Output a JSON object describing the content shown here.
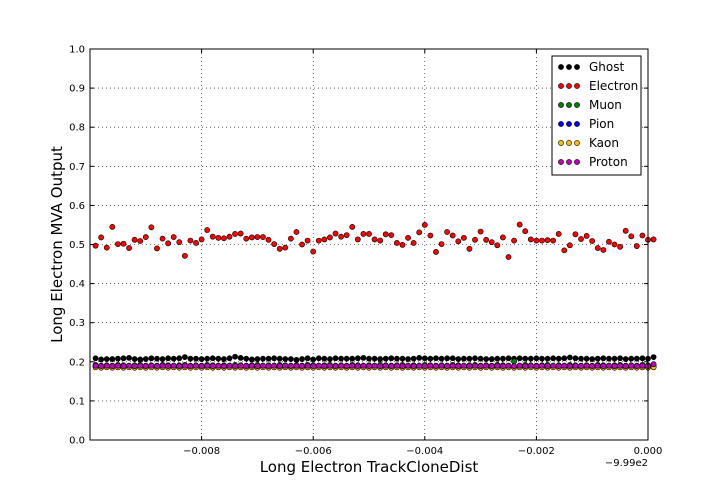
{
  "chart_data": {
    "type": "scatter",
    "xlabel": "Long Electron TrackCloneDist",
    "ylabel": "Long Electron MVA Output",
    "x_offset_label": "−9.99e2",
    "xlim": [
      -0.01,
      0.0
    ],
    "ylim": [
      0.0,
      1.0
    ],
    "x_ticks": [
      -0.008,
      -0.006,
      -0.004,
      -0.002,
      0.0
    ],
    "x_tick_labels": [
      "−0.008",
      "−0.006",
      "−0.004",
      "−0.002",
      "0.000"
    ],
    "y_ticks": [
      0.0,
      0.1,
      0.2,
      0.3,
      0.4,
      0.5,
      0.6,
      0.7,
      0.8,
      0.9,
      1.0
    ],
    "y_tick_labels": [
      "0.0",
      "0.1",
      "0.2",
      "0.3",
      "0.4",
      "0.5",
      "0.6",
      "0.7",
      "0.8",
      "0.9",
      "1.0"
    ],
    "grid": true,
    "legend_position": "top-right",
    "x_start": -0.0099,
    "x_step": 0.0001,
    "series": [
      {
        "name": "Ghost",
        "color": "#000000",
        "values": [
          0.209,
          0.206,
          0.207,
          0.207,
          0.208,
          0.209,
          0.21,
          0.207,
          0.206,
          0.207,
          0.209,
          0.208,
          0.207,
          0.209,
          0.208,
          0.209,
          0.212,
          0.208,
          0.208,
          0.207,
          0.208,
          0.209,
          0.208,
          0.207,
          0.209,
          0.213,
          0.21,
          0.208,
          0.206,
          0.207,
          0.208,
          0.208,
          0.209,
          0.208,
          0.207,
          0.207,
          0.205,
          0.207,
          0.209,
          0.206,
          0.209,
          0.208,
          0.207,
          0.209,
          0.208,
          0.208,
          0.208,
          0.209,
          0.21,
          0.208,
          0.208,
          0.207,
          0.208,
          0.209,
          0.208,
          0.208,
          0.207,
          0.208,
          0.21,
          0.209,
          0.208,
          0.209,
          0.208,
          0.209,
          0.209,
          0.207,
          0.208,
          0.208,
          0.209,
          0.208,
          0.207,
          0.207,
          0.208,
          0.208,
          0.209,
          0.208,
          0.209,
          0.208,
          0.208,
          0.209,
          0.208,
          0.208,
          0.209,
          0.208,
          0.209,
          0.211,
          0.209,
          0.208,
          0.208,
          0.207,
          0.208,
          0.209,
          0.208,
          0.208,
          0.209,
          0.207,
          0.208,
          0.208,
          0.209,
          0.208,
          0.212
        ]
      },
      {
        "name": "Electron",
        "color": "#ff0000",
        "values": [
          0.497,
          0.518,
          0.492,
          0.545,
          0.501,
          0.502,
          0.491,
          0.512,
          0.509,
          0.519,
          0.544,
          0.49,
          0.515,
          0.503,
          0.519,
          0.506,
          0.471,
          0.51,
          0.504,
          0.513,
          0.537,
          0.52,
          0.517,
          0.516,
          0.52,
          0.527,
          0.528,
          0.515,
          0.518,
          0.519,
          0.519,
          0.512,
          0.501,
          0.489,
          0.492,
          0.515,
          0.532,
          0.5,
          0.51,
          0.482,
          0.51,
          0.513,
          0.518,
          0.528,
          0.52,
          0.524,
          0.545,
          0.513,
          0.527,
          0.527,
          0.513,
          0.51,
          0.526,
          0.524,
          0.504,
          0.499,
          0.517,
          0.504,
          0.531,
          0.55,
          0.523,
          0.481,
          0.501,
          0.532,
          0.523,
          0.508,
          0.517,
          0.489,
          0.512,
          0.533,
          0.512,
          0.506,
          0.498,
          0.518,
          0.468,
          0.51,
          0.551,
          0.534,
          0.513,
          0.51,
          0.51,
          0.511,
          0.51,
          0.527,
          0.485,
          0.498,
          0.526,
          0.514,
          0.522,
          0.509,
          0.491,
          0.486,
          0.507,
          0.5,
          0.494,
          0.535,
          0.521,
          0.496,
          0.523,
          0.512,
          0.513
        ]
      },
      {
        "name": "Muon",
        "color": "#007f00",
        "values": [
          0.192,
          0.19,
          0.191,
          0.19,
          0.192,
          0.191,
          0.19,
          0.191,
          0.192,
          0.19,
          0.191,
          0.19,
          0.192,
          0.191,
          0.19,
          0.191,
          0.192,
          0.19,
          0.191,
          0.19,
          0.192,
          0.191,
          0.19,
          0.191,
          0.19,
          0.192,
          0.191,
          0.19,
          0.191,
          0.192,
          0.19,
          0.191,
          0.19,
          0.192,
          0.191,
          0.19,
          0.191,
          0.19,
          0.192,
          0.191,
          0.19,
          0.191,
          0.192,
          0.19,
          0.191,
          0.19,
          0.192,
          0.191,
          0.19,
          0.191,
          0.19,
          0.192,
          0.191,
          0.19,
          0.191,
          0.192,
          0.19,
          0.191,
          0.19,
          0.192,
          0.191,
          0.19,
          0.191,
          0.19,
          0.192,
          0.191,
          0.19,
          0.191,
          0.192,
          0.19,
          0.191,
          0.19,
          0.192,
          0.191,
          0.19,
          0.201,
          0.19,
          0.192,
          0.191,
          0.19,
          0.191,
          0.192,
          0.19,
          0.191,
          0.19,
          0.192,
          0.191,
          0.19,
          0.191,
          0.19,
          0.192,
          0.191,
          0.19,
          0.191,
          0.192,
          0.19,
          0.191,
          0.19,
          0.192,
          0.191,
          0.19
        ]
      },
      {
        "name": "Pion",
        "color": "#0000ff",
        "values": [
          0.188,
          0.187,
          0.188,
          0.189,
          0.187,
          0.188,
          0.187,
          0.188,
          0.189,
          0.187,
          0.188,
          0.187,
          0.188,
          0.189,
          0.187,
          0.188,
          0.187,
          0.188,
          0.189,
          0.187,
          0.188,
          0.187,
          0.188,
          0.189,
          0.187,
          0.188,
          0.187,
          0.188,
          0.189,
          0.187,
          0.188,
          0.187,
          0.188,
          0.189,
          0.187,
          0.188,
          0.187,
          0.188,
          0.189,
          0.187,
          0.188,
          0.187,
          0.188,
          0.189,
          0.187,
          0.188,
          0.187,
          0.188,
          0.189,
          0.187,
          0.188,
          0.187,
          0.188,
          0.189,
          0.187,
          0.188,
          0.187,
          0.188,
          0.189,
          0.187,
          0.188,
          0.187,
          0.188,
          0.189,
          0.187,
          0.188,
          0.187,
          0.188,
          0.189,
          0.187,
          0.188,
          0.187,
          0.188,
          0.189,
          0.187,
          0.188,
          0.187,
          0.188,
          0.189,
          0.187,
          0.188,
          0.187,
          0.188,
          0.189,
          0.187,
          0.188,
          0.187,
          0.188,
          0.189,
          0.187,
          0.188,
          0.187,
          0.188,
          0.189,
          0.187,
          0.188,
          0.187,
          0.188,
          0.189,
          0.187,
          0.188
        ]
      },
      {
        "name": "Kaon",
        "color": "#ffbf00",
        "values": [
          0.186,
          0.185,
          0.186,
          0.185,
          0.186,
          0.185,
          0.186,
          0.185,
          0.186,
          0.185,
          0.186,
          0.185,
          0.186,
          0.185,
          0.186,
          0.185,
          0.186,
          0.185,
          0.186,
          0.185,
          0.186,
          0.185,
          0.186,
          0.185,
          0.186,
          0.185,
          0.186,
          0.185,
          0.186,
          0.185,
          0.186,
          0.185,
          0.186,
          0.185,
          0.186,
          0.185,
          0.186,
          0.185,
          0.186,
          0.185,
          0.186,
          0.185,
          0.186,
          0.185,
          0.186,
          0.185,
          0.186,
          0.185,
          0.186,
          0.185,
          0.186,
          0.185,
          0.186,
          0.185,
          0.186,
          0.185,
          0.186,
          0.185,
          0.186,
          0.185,
          0.186,
          0.185,
          0.186,
          0.185,
          0.186,
          0.185,
          0.186,
          0.185,
          0.186,
          0.185,
          0.186,
          0.185,
          0.186,
          0.185,
          0.186,
          0.185,
          0.186,
          0.185,
          0.186,
          0.185,
          0.186,
          0.185,
          0.186,
          0.185,
          0.186,
          0.185,
          0.186,
          0.185,
          0.186,
          0.185,
          0.186,
          0.185,
          0.186,
          0.185,
          0.186,
          0.185,
          0.186,
          0.185,
          0.186,
          0.185,
          0.186
        ]
      },
      {
        "name": "Proton",
        "color": "#bf00bf",
        "values": [
          0.19,
          0.189,
          0.19,
          0.189,
          0.19,
          0.189,
          0.19,
          0.189,
          0.19,
          0.189,
          0.19,
          0.189,
          0.19,
          0.189,
          0.19,
          0.189,
          0.19,
          0.189,
          0.19,
          0.189,
          0.19,
          0.189,
          0.19,
          0.189,
          0.19,
          0.189,
          0.19,
          0.189,
          0.19,
          0.189,
          0.19,
          0.189,
          0.19,
          0.189,
          0.19,
          0.189,
          0.19,
          0.189,
          0.19,
          0.189,
          0.19,
          0.189,
          0.19,
          0.189,
          0.19,
          0.189,
          0.19,
          0.189,
          0.19,
          0.189,
          0.19,
          0.189,
          0.19,
          0.189,
          0.19,
          0.189,
          0.19,
          0.189,
          0.19,
          0.189,
          0.19,
          0.189,
          0.19,
          0.189,
          0.19,
          0.189,
          0.19,
          0.189,
          0.19,
          0.189,
          0.19,
          0.189,
          0.19,
          0.189,
          0.19,
          0.189,
          0.19,
          0.189,
          0.19,
          0.189,
          0.19,
          0.189,
          0.19,
          0.189,
          0.19,
          0.189,
          0.19,
          0.189,
          0.19,
          0.189,
          0.19,
          0.189,
          0.19,
          0.189,
          0.19,
          0.189,
          0.19,
          0.189,
          0.19,
          0.189,
          0.194
        ]
      }
    ]
  }
}
